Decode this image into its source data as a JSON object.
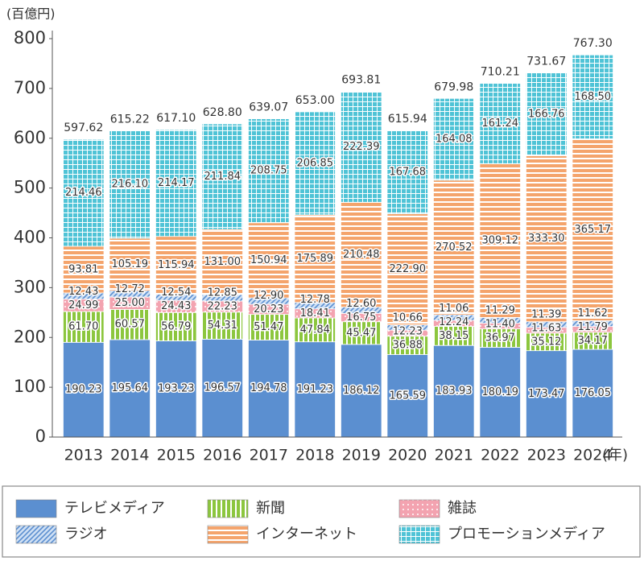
{
  "chart_data": {
    "type": "stacked_bar",
    "y_unit_label": "(百億円)",
    "x_unit_label": "(年)",
    "categories": [
      "2013",
      "2014",
      "2015",
      "2016",
      "2017",
      "2018",
      "2019",
      "2020",
      "2021",
      "2022",
      "2023",
      "2024"
    ],
    "series": [
      {
        "name": "テレビメディア",
        "color": "#5b8fd0",
        "pattern": "solid",
        "values": [
          190.23,
          195.64,
          193.23,
          196.57,
          194.78,
          191.23,
          186.12,
          165.59,
          183.93,
          180.19,
          173.47,
          176.05
        ],
        "value_labels": [
          "190.23",
          "195.64",
          "193.23",
          "196.57",
          "194.78",
          "191.23",
          "186.12",
          "165.59",
          "183.93",
          "180.19",
          "173.47",
          "176.05"
        ]
      },
      {
        "name": "新聞",
        "color": "#8cc63e",
        "pattern": "vstripe",
        "values": [
          61.7,
          60.57,
          56.79,
          54.31,
          51.47,
          47.84,
          45.47,
          36.88,
          38.15,
          36.97,
          35.12,
          34.17
        ],
        "value_labels": [
          "61.70",
          "60.57",
          "56.79",
          "54.31",
          "51.47",
          "47.84",
          "45.47",
          "36.88",
          "38.15",
          "36.97",
          "35.12",
          "34.17"
        ]
      },
      {
        "name": "雑誌",
        "color": "#f3a3b0",
        "pattern": "dots",
        "values": [
          24.99,
          25.0,
          24.43,
          22.23,
          20.23,
          18.41,
          16.75,
          12.23,
          12.24,
          11.4,
          11.63,
          11.79
        ],
        "value_labels": [
          "24.99",
          "25.00",
          "24.43",
          "22.23",
          "20.23",
          "18.41",
          "16.75",
          "12.23",
          "12.24",
          "11.40",
          "11.63",
          "11.79"
        ]
      },
      {
        "name": "ラジオ",
        "color": "#5b8fd0",
        "pattern": "hatch",
        "values": [
          12.43,
          12.72,
          12.54,
          12.85,
          12.9,
          12.78,
          12.6,
          10.66,
          11.06,
          11.29,
          11.39,
          11.62
        ],
        "value_labels": [
          "12.43",
          "12.72",
          "12.54",
          "12.85",
          "12.90",
          "12.78",
          "12.60",
          "10.66",
          "11.06",
          "11.29",
          "11.39",
          "11.62"
        ]
      },
      {
        "name": "インターネット",
        "color": "#f4a46c",
        "pattern": "hstripe",
        "values": [
          93.81,
          105.19,
          115.94,
          131.0,
          150.94,
          175.89,
          210.48,
          222.9,
          270.52,
          309.12,
          333.3,
          365.17
        ],
        "value_labels": [
          "93.81",
          "105.19",
          "115.94",
          "131.00",
          "150.94",
          "175.89",
          "210.48",
          "222.90",
          "270.52",
          "309.12",
          "333.30",
          "365.17"
        ]
      },
      {
        "name": "プロモーションメディア",
        "color": "#4fc3d6",
        "pattern": "grid",
        "values": [
          214.46,
          216.1,
          214.17,
          211.84,
          208.75,
          206.85,
          222.39,
          167.68,
          164.08,
          161.24,
          166.76,
          168.5
        ],
        "value_labels": [
          "214.46",
          "216.10",
          "214.17",
          "211.84",
          "208.75",
          "206.85",
          "222.39",
          "167.68",
          "164.08",
          "161.24",
          "166.76",
          "168.50"
        ]
      }
    ],
    "totals": [
      597.62,
      615.22,
      617.1,
      628.8,
      639.07,
      653.0,
      693.81,
      615.94,
      679.98,
      710.21,
      731.67,
      767.3
    ],
    "total_labels": [
      "597.62",
      "615.22",
      "617.10",
      "628.80",
      "639.07",
      "653.00",
      "693.81",
      "615.94",
      "679.98",
      "710.21",
      "731.67",
      "767.30"
    ],
    "ylim": [
      0,
      800
    ],
    "yticks": [
      0,
      100,
      200,
      300,
      400,
      500,
      600,
      700,
      800
    ],
    "grid": false
  }
}
